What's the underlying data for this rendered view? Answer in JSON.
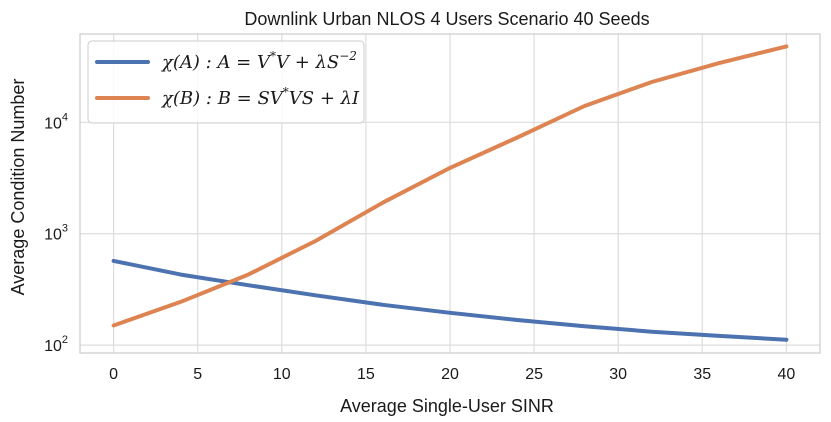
{
  "chart_data": {
    "type": "line",
    "title": "Downlink Urban NLOS 4 Users Scenario 40 Seeds",
    "xlabel": "Average Single-User SINR",
    "ylabel": "Average Condition Number",
    "yscale": "log",
    "xlim": [
      -2,
      42
    ],
    "ylim": [
      85,
      62000
    ],
    "x_ticks": [
      0,
      5,
      10,
      15,
      20,
      25,
      30,
      35,
      40
    ],
    "y_ticks": [
      {
        "value": 100,
        "base": "10",
        "exp": "2"
      },
      {
        "value": 1000,
        "base": "10",
        "exp": "3"
      },
      {
        "value": 10000,
        "base": "10",
        "exp": "4"
      }
    ],
    "grid": true,
    "legend_position": "top-left",
    "series": [
      {
        "name": "χ(A) : A = V*V + λS⁻²",
        "legend_main": "χ(A) : A = V",
        "legend_sup1": "*",
        "legend_mid": "V + λS",
        "legend_sup2": "−2",
        "legend_tail": "",
        "color": "#4c72b0",
        "x": [
          0,
          4,
          8,
          12,
          16,
          20,
          24,
          28,
          32,
          36,
          40
        ],
        "y": [
          570,
          430,
          345,
          280,
          230,
          195,
          168,
          148,
          132,
          121,
          112
        ]
      },
      {
        "name": "χ(B) : B = SV*VS + λI",
        "legend_main": "χ(B) : B = SV",
        "legend_sup1": "*",
        "legend_mid": "VS + λI",
        "legend_sup2": "",
        "legend_tail": "",
        "color": "#dd8452",
        "x": [
          0,
          4,
          8,
          12,
          16,
          20,
          24,
          28,
          32,
          36,
          40
        ],
        "y": [
          150,
          245,
          430,
          860,
          1900,
          3900,
          7300,
          14000,
          23000,
          34000,
          48000
        ]
      }
    ]
  }
}
